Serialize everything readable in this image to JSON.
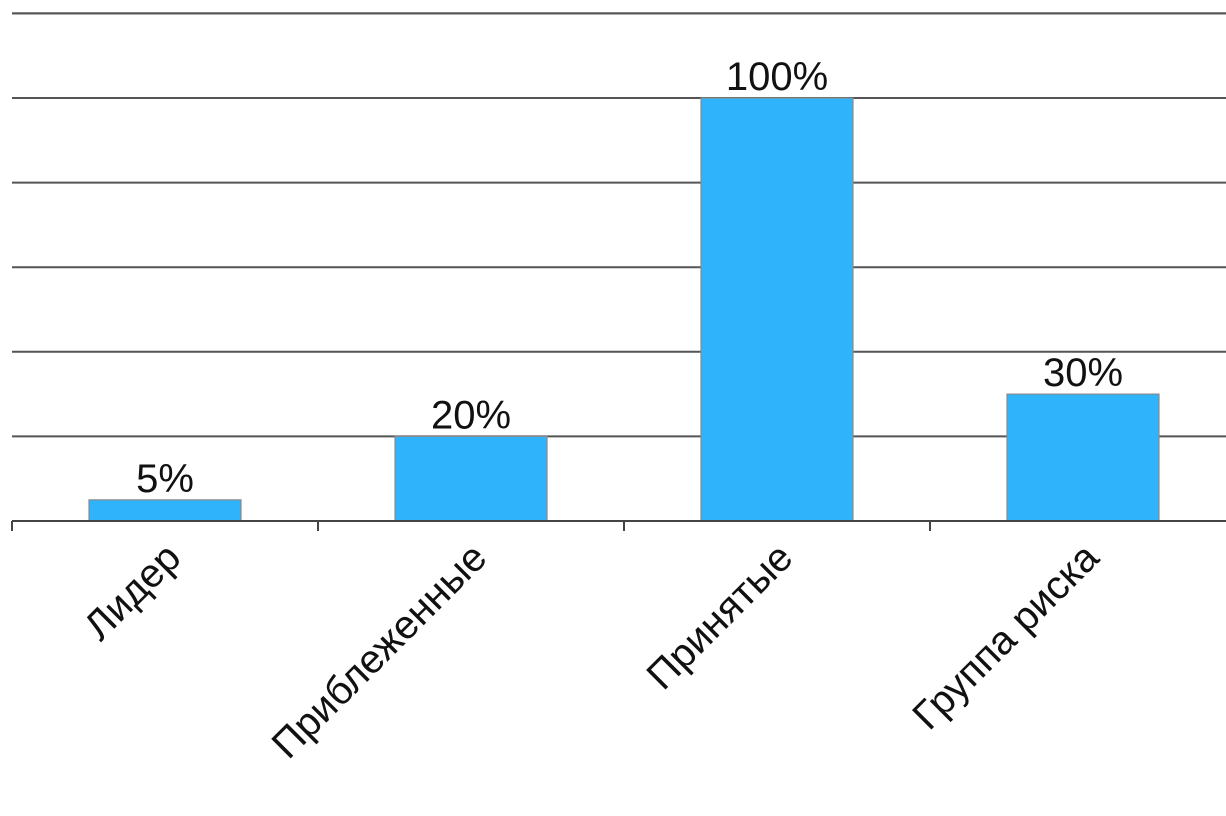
{
  "chart_data": {
    "type": "bar",
    "categories": [
      "Лидер",
      "Приблеженные",
      "Принятые",
      "Группа риска"
    ],
    "values": [
      5,
      20,
      100,
      30
    ],
    "data_labels": [
      "5%",
      "20%",
      "100%",
      "30%"
    ],
    "ylim": [
      0,
      120
    ],
    "ytick_step": 20,
    "grid": true,
    "legend": "none",
    "colors": {
      "bar": "#2fb3fb"
    }
  }
}
